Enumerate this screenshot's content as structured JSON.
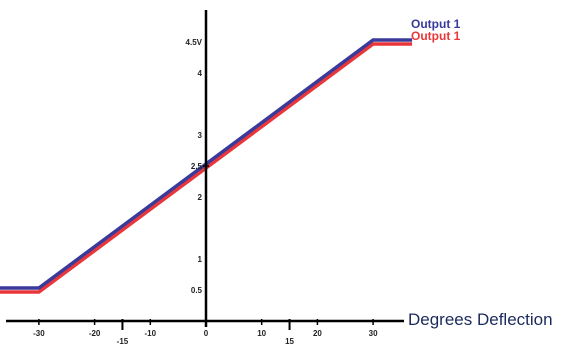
{
  "chart_data": {
    "type": "line",
    "title": "",
    "xlabel": "Degrees Deflection",
    "ylabel": "",
    "xlim": [
      -37,
      44
    ],
    "ylim": [
      0,
      5
    ],
    "x_ticks": [
      {
        "value": -30,
        "label": "-30"
      },
      {
        "value": -20,
        "label": "-20"
      },
      {
        "value": -15,
        "label": "-15"
      },
      {
        "value": -10,
        "label": "-10"
      },
      {
        "value": 0,
        "label": "0"
      },
      {
        "value": 10,
        "label": "10"
      },
      {
        "value": 15,
        "label": "15"
      },
      {
        "value": 20,
        "label": "20"
      },
      {
        "value": 30,
        "label": "30"
      }
    ],
    "y_ticks": [
      {
        "value": 0.5,
        "label": "0.5"
      },
      {
        "value": 1,
        "label": "1"
      },
      {
        "value": 2,
        "label": "2"
      },
      {
        "value": 2.5,
        "label": "2.5"
      },
      {
        "value": 3,
        "label": "3"
      },
      {
        "value": 4,
        "label": "4"
      },
      {
        "value": 4.5,
        "label": "4.5V"
      }
    ],
    "series": [
      {
        "name": "Output 1",
        "color": "#3a3a9a",
        "x": [
          -37,
          -30,
          30,
          37
        ],
        "y": [
          0.5,
          0.5,
          4.5,
          4.5
        ]
      },
      {
        "name": "Output 1",
        "color": "#e8363a",
        "x": [
          -37,
          -30,
          30,
          37
        ],
        "y": [
          0.5,
          0.5,
          4.5,
          4.5
        ]
      }
    ],
    "grid": false,
    "legend_position": "top-right"
  }
}
